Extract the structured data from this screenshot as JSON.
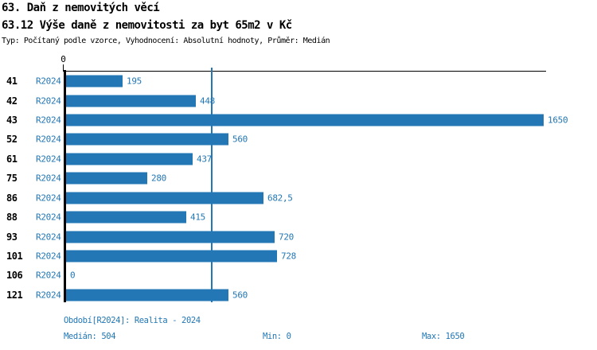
{
  "accent_color": "#2277b4",
  "header": {
    "title": "63. Daň z nemovitých věcí",
    "subtitle": "63.12 Výše daně z nemovitosti za byt 65m2 v Kč",
    "meta": "Typ: Počítaný podle vzorce, Vyhodnocení: Absolutní hodnoty, Průměr: Medián"
  },
  "chart_data": {
    "type": "bar",
    "orientation": "horizontal",
    "title": "63.12 Výše daně z nemovitosti za byt 65m2 v Kč",
    "categories": [
      "41",
      "42",
      "43",
      "52",
      "61",
      "75",
      "86",
      "88",
      "93",
      "101",
      "106",
      "121"
    ],
    "series": [
      {
        "name": "R2024",
        "values": [
          195,
          448,
          1650,
          560,
          437,
          280,
          682.5,
          415,
          720,
          728,
          0,
          560
        ],
        "value_labels": [
          "195",
          "448",
          "1650",
          "560",
          "437",
          "280",
          "682,5",
          "415",
          "720",
          "728",
          "0",
          "560"
        ]
      }
    ],
    "xlim": [
      0,
      1650
    ],
    "axis_zero_tick_label": "0",
    "median_value": 504,
    "bar_color": "#2277b4",
    "median_line_color": "#2277b4",
    "grid": false,
    "legend_position": "none"
  },
  "footer": {
    "period": "Období[R2024]: Realita - 2024",
    "median": "Medián: 504",
    "min": "Min: 0",
    "max": "Max: 1650"
  }
}
